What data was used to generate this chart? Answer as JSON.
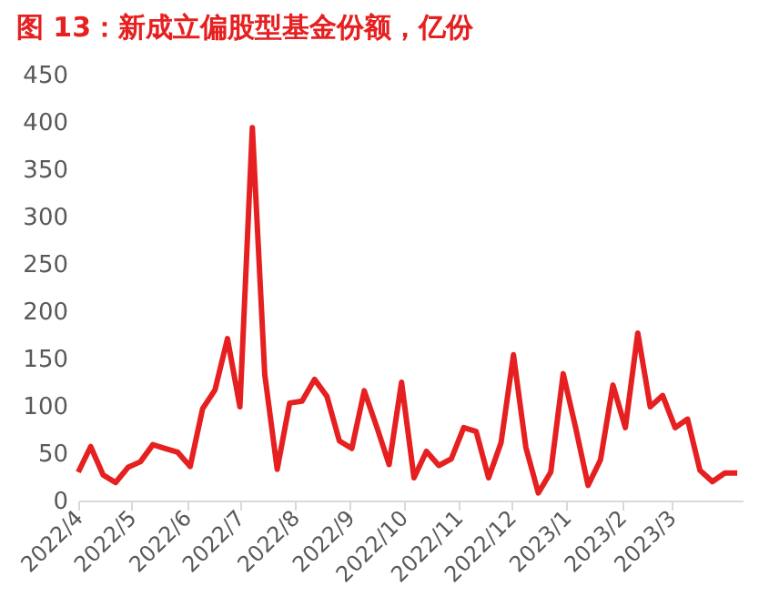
{
  "chart_data": {
    "type": "line",
    "title": "图 13：新成立偏股型基金份额，亿份",
    "x": [
      "2022-04-01",
      "2022-04-08",
      "2022-04-15",
      "2022-04-22",
      "2022-04-29",
      "2022-05-06",
      "2022-05-13",
      "2022-05-20",
      "2022-05-27",
      "2022-06-03",
      "2022-06-10",
      "2022-06-17",
      "2022-06-24",
      "2022-07-01",
      "2022-07-08",
      "2022-07-15",
      "2022-07-22",
      "2022-07-29",
      "2022-08-05",
      "2022-08-12",
      "2022-08-19",
      "2022-08-26",
      "2022-09-02",
      "2022-09-09",
      "2022-09-16",
      "2022-09-23",
      "2022-09-30",
      "2022-10-07",
      "2022-10-14",
      "2022-10-21",
      "2022-10-28",
      "2022-11-04",
      "2022-11-11",
      "2022-11-18",
      "2022-11-25",
      "2022-12-02",
      "2022-12-09",
      "2022-12-16",
      "2022-12-23",
      "2022-12-30",
      "2023-01-06",
      "2023-01-13",
      "2023-01-20",
      "2023-01-27",
      "2023-02-03",
      "2023-02-10",
      "2023-02-17",
      "2023-02-24",
      "2023-03-03",
      "2023-03-10",
      "2023-03-17",
      "2023-03-24",
      "2023-03-31",
      "2023-04-07"
    ],
    "series": [
      {
        "color": "#e62020",
        "values": [
          30,
          57,
          27,
          19,
          35,
          41,
          59,
          55,
          51,
          36,
          97,
          117,
          171,
          99,
          394,
          133,
          33,
          103,
          105,
          128,
          110,
          63,
          55,
          116,
          78,
          38,
          125,
          24,
          52,
          37,
          44,
          77,
          73,
          24,
          61,
          154,
          56,
          8,
          30,
          134,
          77,
          16,
          43,
          122,
          77,
          177,
          99,
          111,
          77,
          86,
          32,
          20,
          29,
          29
        ]
      }
    ],
    "xlim": [
      "2022-04-01",
      "2023-04-10"
    ],
    "xticks": [
      {
        "value": "2022-04-01",
        "label": "2022/4"
      },
      {
        "value": "2022-05-01",
        "label": "2022/5"
      },
      {
        "value": "2022-06-01",
        "label": "2022/6"
      },
      {
        "value": "2022-07-01",
        "label": "2022/7"
      },
      {
        "value": "2022-08-01",
        "label": "2022/8"
      },
      {
        "value": "2022-09-01",
        "label": "2022/9"
      },
      {
        "value": "2022-10-01",
        "label": "2022/10"
      },
      {
        "value": "2022-11-01",
        "label": "2022/11"
      },
      {
        "value": "2022-12-01",
        "label": "2022/12"
      },
      {
        "value": "2023-01-01",
        "label": "2023/1"
      },
      {
        "value": "2023-02-01",
        "label": "2023/2"
      },
      {
        "value": "2023-03-01",
        "label": "2023/3"
      }
    ],
    "ylim": [
      0,
      450
    ],
    "yticks": [
      0,
      50,
      100,
      150,
      200,
      250,
      300,
      350,
      400,
      450
    ],
    "grid": false,
    "marker": "none",
    "line_style": "solid"
  }
}
